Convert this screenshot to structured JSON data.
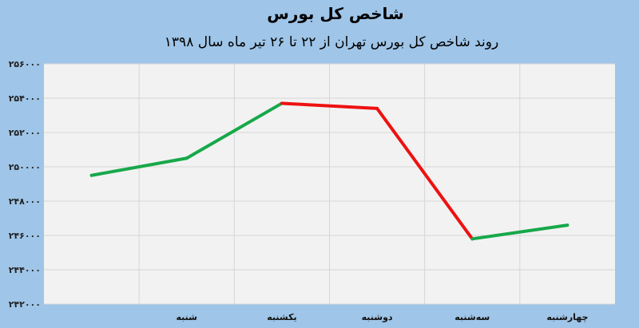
{
  "chart_data": {
    "type": "line",
    "title": "شاخص کل بورس",
    "subtitle": "روند شاخص کل بورس تهران از ۲۲ تا ۲۶ تیر ماه سال ۱۳۹۸",
    "xlabel": "",
    "ylabel": "",
    "categories": [
      "",
      "شنبه",
      "یکشنبه",
      "دوشنبه",
      "سه‌شنبه",
      "چهارشنبه"
    ],
    "values": [
      249500,
      250500,
      253700,
      253400,
      245800,
      246600
    ],
    "ylim": [
      242000,
      256000
    ],
    "yticks": [
      242000,
      244000,
      246000,
      248000,
      250000,
      252000,
      254000,
      256000
    ],
    "ytick_labels": [
      "۲۴۲۰۰۰",
      "۲۴۴۰۰۰",
      "۲۴۶۰۰۰",
      "۲۴۸۰۰۰",
      "۲۵۰۰۰۰",
      "۲۵۲۰۰۰",
      "۲۵۴۰۰۰",
      "۲۵۶۰۰۰"
    ],
    "grid": true,
    "legend": "none",
    "colors": {
      "up": "#17a84a",
      "down": "#ee1111",
      "background": "#9fc5e8",
      "plot": "#f2f2f2",
      "grid": "#d6d6d6"
    }
  }
}
